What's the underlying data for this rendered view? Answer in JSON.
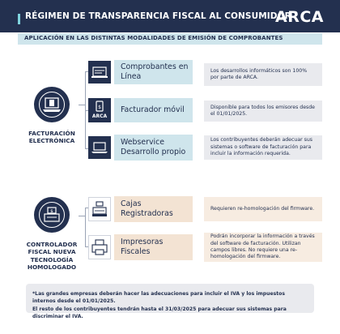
{
  "header": {
    "title": "RÉGIMEN DE TRANSPARENCIA FISCAL AL CONSUMIDOR",
    "logo": "ARCA"
  },
  "subtitle": "APLICACIÓN EN LAS DISTINTAS MODALIDADES DE EMISIÓN DE COMPROBANTES",
  "groups": [
    {
      "label": "FACTURACIÓN ELECTRÓNICA",
      "icon": "laptop-document-icon",
      "items": [
        {
          "icon": "online-receipt-icon",
          "label": "Comprobantes en Línea",
          "description": "Los desarrollos informáticos son 100% por parte de ARCA."
        },
        {
          "icon": "mobile-invoice-icon",
          "icon_text": "ARCA",
          "label": "Facturador móvil",
          "description": "Disponible para todos los emisores desde el 01/01/2025."
        },
        {
          "icon": "laptop-icon",
          "label": "Webservice Desarrollo propio",
          "description": "Los contribuyentes deberán adecuar sus sistemas o software de facturación para incluir la información requerida."
        }
      ]
    },
    {
      "label": "CONTROLADOR FISCAL NUEVA TECNOLOGÍA HOMOLOGADO",
      "icon": "fiscal-printer-icon",
      "items": [
        {
          "icon": "cash-register-icon",
          "label": "Cajas Registradoras",
          "description": "Requieren re-homologación del firmware."
        },
        {
          "icon": "printer-icon",
          "label": "Impresoras Fiscales",
          "description": "Podrán incorporar la información a través del software de facturación. Utilizan campos libres. No requiere una re-homologación del firmware."
        }
      ]
    }
  ],
  "footer": {
    "line1": "*Las grandes empresas deberán hacer las adecuaciones para incluir el IVA y los impuestos internos desde el 01/01/2025.",
    "line2": "El resto de los contribuyentes tendrán hasta el 31/03/2025 para adecuar sus sistemas para discriminar el IVA."
  },
  "colors": {
    "navy": "#23304f",
    "light_blue": "#cfe5ec",
    "accent_cyan": "#7fd3de",
    "light_orange": "#f3e3d3",
    "gray": "#e9eaee"
  }
}
